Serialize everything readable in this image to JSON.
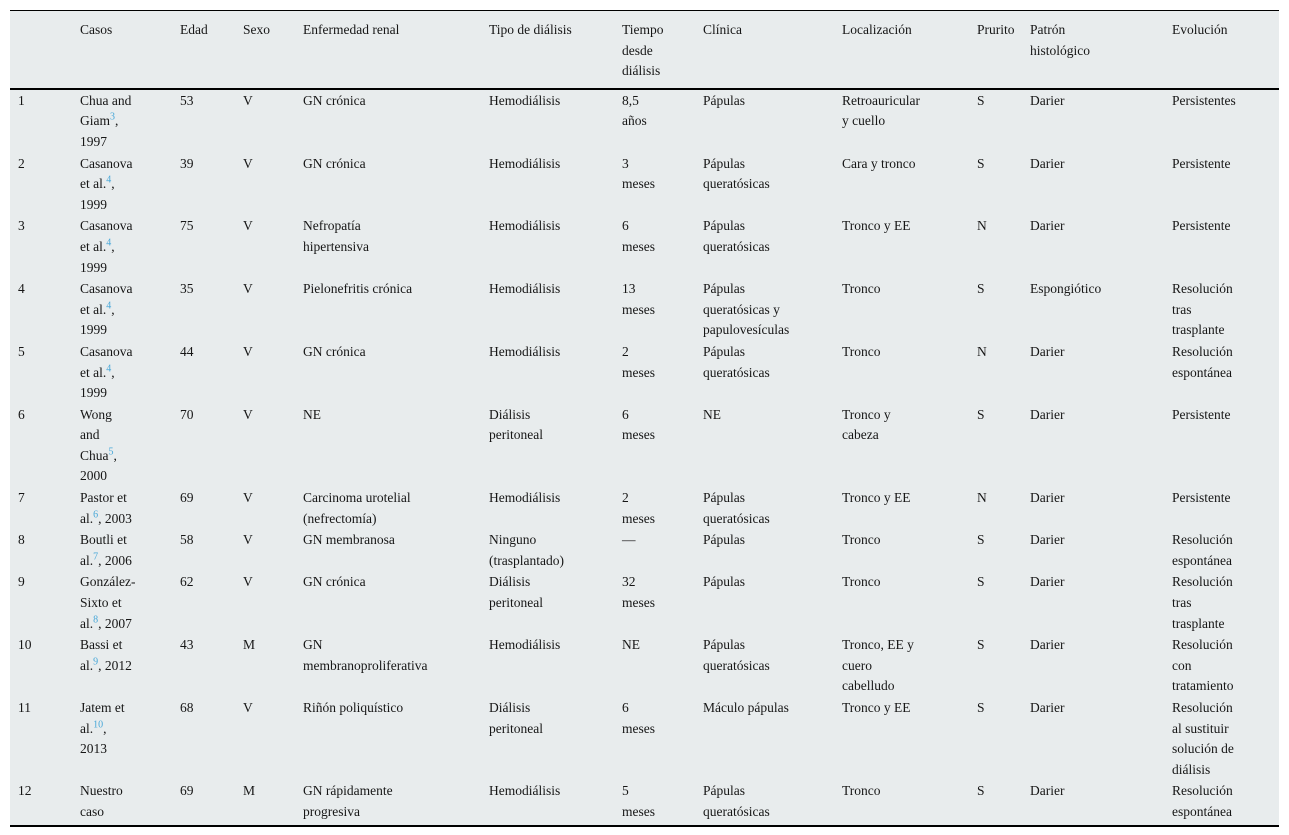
{
  "colors": {
    "table_background": "#e8eced",
    "rule_color": "#000000",
    "text_color": "#161616",
    "reference_link_color": "#47a7d8"
  },
  "table": {
    "headers": [
      {
        "key": "num",
        "label": ""
      },
      {
        "key": "casos",
        "label": "Casos"
      },
      {
        "key": "edad",
        "label": "Edad"
      },
      {
        "key": "sexo",
        "label": "Sexo"
      },
      {
        "key": "enfermedad",
        "label": "Enfermedad renal"
      },
      {
        "key": "tipo",
        "label": "Tipo de diálisis"
      },
      {
        "key": "tiempo",
        "label": "Tiempo\ndesde\ndiálisis"
      },
      {
        "key": "clinica",
        "label": "Clínica"
      },
      {
        "key": "localizacion",
        "label": "Localización"
      },
      {
        "key": "prurito",
        "label": "Prurito"
      },
      {
        "key": "patron",
        "label": "Patrón\nhistológico"
      },
      {
        "key": "evolucion",
        "label": "Evolución"
      }
    ],
    "rows": [
      {
        "num": "1",
        "casos": {
          "text": "Chua and\nGiam",
          "ref": "3",
          "suffix": ",\n1997"
        },
        "edad": "53",
        "sexo": "V",
        "enfermedad": "GN crónica",
        "tipo": "Hemodiálisis",
        "tiempo": "8,5\naños",
        "clinica": "Pápulas",
        "localizacion": "Retroauricular\ny cuello",
        "prurito": "S",
        "patron": "Darier",
        "evolucion": "Persistentes"
      },
      {
        "num": "2",
        "casos": {
          "text": "Casanova\net al.",
          "ref": "4",
          "suffix": ",\n1999"
        },
        "edad": "39",
        "sexo": "V",
        "enfermedad": "GN crónica",
        "tipo": "Hemodiálisis",
        "tiempo": "3\nmeses",
        "clinica": "Pápulas\nqueratósicas",
        "localizacion": "Cara y tronco",
        "prurito": "S",
        "patron": "Darier",
        "evolucion": "Persistente"
      },
      {
        "num": "3",
        "casos": {
          "text": "Casanova\net al.",
          "ref": "4",
          "suffix": ",\n1999"
        },
        "edad": "75",
        "sexo": "V",
        "enfermedad": "Nefropatía\nhipertensiva",
        "tipo": "Hemodiálisis",
        "tiempo": "6\nmeses",
        "clinica": "Pápulas\nqueratósicas",
        "localizacion": "Tronco y EE",
        "prurito": "N",
        "patron": "Darier",
        "evolucion": "Persistente"
      },
      {
        "num": "4",
        "casos": {
          "text": "Casanova\net al.",
          "ref": "4",
          "suffix": ",\n1999"
        },
        "edad": "35",
        "sexo": "V",
        "enfermedad": "Pielonefritis crónica",
        "tipo": "Hemodiálisis",
        "tiempo": "13\nmeses",
        "clinica": "Pápulas\nqueratósicas y\npapulovesículas",
        "localizacion": "Tronco",
        "prurito": "S",
        "patron": "Espongiótico",
        "evolucion": "Resolución\ntras\ntrasplante"
      },
      {
        "num": "5",
        "casos": {
          "text": "Casanova\net al.",
          "ref": "4",
          "suffix": ",\n1999"
        },
        "edad": "44",
        "sexo": "V",
        "enfermedad": "GN crónica",
        "tipo": "Hemodiálisis",
        "tiempo": "2\nmeses",
        "clinica": "Pápulas\nqueratósicas",
        "localizacion": "Tronco",
        "prurito": "N",
        "patron": "Darier",
        "evolucion": "Resolución\nespontánea"
      },
      {
        "num": "6",
        "casos": {
          "text": "Wong\nand\nChua",
          "ref": "5",
          "suffix": ",\n2000"
        },
        "edad": "70",
        "sexo": "V",
        "enfermedad": "NE",
        "tipo": "Diálisis\nperitoneal",
        "tiempo": "6\nmeses",
        "clinica": "NE",
        "localizacion": "Tronco y\ncabeza",
        "prurito": "S",
        "patron": "Darier",
        "evolucion": "Persistente"
      },
      {
        "num": "7",
        "casos": {
          "text": "Pastor et\nal.",
          "ref": "6",
          "suffix": ", 2003"
        },
        "edad": "69",
        "sexo": "V",
        "enfermedad": "Carcinoma urotelial\n(nefrectomía)",
        "tipo": "Hemodiálisis",
        "tiempo": "2\nmeses",
        "clinica": "Pápulas\nqueratósicas",
        "localizacion": "Tronco y EE",
        "prurito": "N",
        "patron": "Darier",
        "evolucion": "Persistente"
      },
      {
        "num": "8",
        "casos": {
          "text": "Boutli et\nal.",
          "ref": "7",
          "suffix": ", 2006"
        },
        "edad": "58",
        "sexo": "V",
        "enfermedad": "GN membranosa",
        "tipo": "Ninguno\n(trasplantado)",
        "tiempo": "—",
        "clinica": "Pápulas",
        "localizacion": "Tronco",
        "prurito": "S",
        "patron": "Darier",
        "evolucion": "Resolución\nespontánea"
      },
      {
        "num": "9",
        "casos": {
          "text": "González-\nSixto et\nal.",
          "ref": "8",
          "suffix": ", 2007"
        },
        "edad": "62",
        "sexo": "V",
        "enfermedad": "GN crónica",
        "tipo": "Diálisis\nperitoneal",
        "tiempo": "32\nmeses",
        "clinica": "Pápulas",
        "localizacion": "Tronco",
        "prurito": "S",
        "patron": "Darier",
        "evolucion": "Resolución\ntras\ntrasplante"
      },
      {
        "num": "10",
        "casos": {
          "text": "Bassi et\nal.",
          "ref": "9",
          "suffix": ", 2012"
        },
        "edad": "43",
        "sexo": "M",
        "enfermedad": "GN\nmembranoproliferativa",
        "tipo": "Hemodiálisis",
        "tiempo": "NE",
        "clinica": "Pápulas\nqueratósicas",
        "localizacion": "Tronco, EE y\ncuero\ncabelludo",
        "prurito": "S",
        "patron": "Darier",
        "evolucion": "Resolución\ncon\ntratamiento"
      },
      {
        "num": "11",
        "casos": {
          "text": "Jatem et\nal.",
          "ref": "10",
          "suffix": ",\n2013"
        },
        "edad": "68",
        "sexo": "V",
        "enfermedad": "Riñón poliquístico",
        "tipo": "Diálisis\nperitoneal",
        "tiempo": "6\nmeses",
        "clinica": "Máculo pápulas",
        "localizacion": "Tronco y EE",
        "prurito": "S",
        "patron": "Darier",
        "evolucion": "Resolución\nal sustituir\nsolución de\ndiálisis"
      },
      {
        "num": "12",
        "casos": {
          "text": "Nuestro\ncaso",
          "ref": null,
          "suffix": ""
        },
        "edad": "69",
        "sexo": "M",
        "enfermedad": "GN rápidamente\nprogresiva",
        "tipo": "Hemodiálisis",
        "tiempo": "5\nmeses",
        "clinica": "Pápulas\nqueratósicas",
        "localizacion": "Tronco",
        "prurito": "S",
        "patron": "Darier",
        "evolucion": "Resolución\nespontánea"
      }
    ]
  }
}
